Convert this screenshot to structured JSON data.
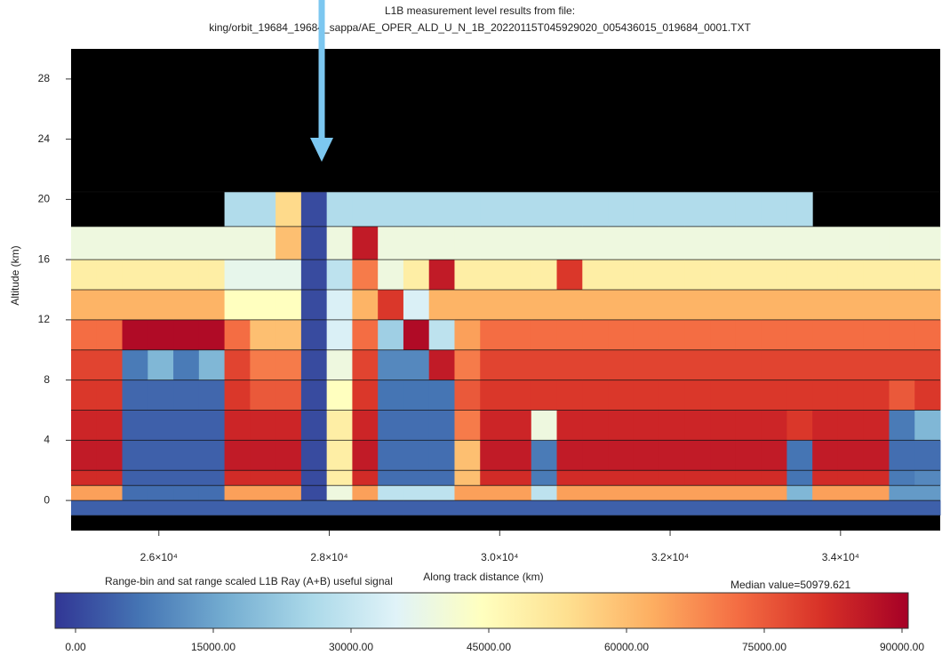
{
  "chart_data": {
    "type": "heatmap",
    "title": "L1B measurement level results from file:",
    "subtitle": "king/orbit_19684_19684_sappa/AE_OPER_ALD_U_N_1B_20220115T045929020_005436015_019684_0001.TXT",
    "x_label": "Along track distance (km)",
    "y_label": "Altitude (km)",
    "xlim": [
      24970,
      35170
    ],
    "ylim": [
      -2,
      30
    ],
    "xticks": [
      {
        "value": 26000,
        "label": "2.6×10⁴"
      },
      {
        "value": 28000,
        "label": "2.8×10⁴"
      },
      {
        "value": 30000,
        "label": "3.0×10⁴"
      },
      {
        "value": 32000,
        "label": "3.2×10⁴"
      },
      {
        "value": 34000,
        "label": "3.4×10⁴"
      }
    ],
    "yticks": [
      0,
      4,
      8,
      12,
      16,
      20,
      24,
      28
    ],
    "x_edges": [
      24970,
      25270,
      25570,
      25870,
      26170,
      26470,
      26770,
      27070,
      27370,
      27670,
      27970,
      28270,
      28570,
      28870,
      29170,
      29470,
      29770,
      30070,
      30370,
      30670,
      30970,
      31270,
      31570,
      31870,
      32170,
      32470,
      32770,
      33070,
      33370,
      33670,
      33970,
      34270,
      34570,
      34870,
      35170
    ],
    "y_edges": [
      -1,
      0,
      1,
      2,
      4,
      6,
      8,
      10,
      12,
      14,
      16,
      18.2,
      20.5
    ],
    "z": [
      [
        6000,
        6000,
        6000,
        6000,
        6000,
        6000,
        6000,
        6000,
        6000,
        6000,
        6000,
        6000,
        6000,
        6000,
        6000,
        6000,
        6000,
        6000,
        6000,
        6000,
        6000,
        6000,
        6000,
        6000,
        6000,
        6000,
        6000,
        6000,
        6000,
        6000,
        6000,
        6000,
        6000,
        6000
      ],
      [
        65000,
        65000,
        8000,
        8000,
        8000,
        8000,
        65000,
        65000,
        65000,
        3000,
        40000,
        65000,
        30000,
        30000,
        30000,
        65000,
        65000,
        65000,
        30000,
        65000,
        65000,
        65000,
        65000,
        65000,
        65000,
        65000,
        65000,
        65000,
        20000,
        65000,
        65000,
        65000,
        15000,
        15000
      ],
      [
        82000,
        82000,
        6000,
        6000,
        6000,
        6000,
        82000,
        82000,
        82000,
        3000,
        50000,
        82000,
        8000,
        8000,
        8000,
        60000,
        82000,
        82000,
        10000,
        82000,
        82000,
        82000,
        82000,
        82000,
        82000,
        82000,
        82000,
        82000,
        9000,
        82000,
        82000,
        82000,
        10000,
        12000
      ],
      [
        85000,
        85000,
        6000,
        6000,
        6000,
        6000,
        85000,
        85000,
        85000,
        3000,
        50000,
        85000,
        8000,
        8000,
        8000,
        60000,
        85000,
        85000,
        10000,
        85000,
        85000,
        85000,
        85000,
        85000,
        85000,
        85000,
        85000,
        85000,
        9000,
        85000,
        85000,
        85000,
        8000,
        8000
      ],
      [
        83000,
        83000,
        6000,
        6000,
        6000,
        6000,
        83000,
        83000,
        83000,
        3000,
        50000,
        83000,
        8000,
        8000,
        8000,
        70000,
        83000,
        83000,
        40000,
        83000,
        83000,
        83000,
        83000,
        83000,
        83000,
        83000,
        83000,
        83000,
        80000,
        83000,
        83000,
        83000,
        10000,
        20000
      ],
      [
        80000,
        80000,
        7000,
        7000,
        7000,
        7000,
        80000,
        75000,
        75000,
        3000,
        45000,
        80000,
        9000,
        9000,
        9000,
        75000,
        80000,
        80000,
        80000,
        80000,
        80000,
        80000,
        80000,
        80000,
        80000,
        80000,
        80000,
        80000,
        80000,
        80000,
        80000,
        80000,
        75000,
        80000
      ],
      [
        78000,
        78000,
        10000,
        20000,
        10000,
        20000,
        78000,
        70000,
        70000,
        3000,
        40000,
        78000,
        12000,
        12000,
        85000,
        70000,
        78000,
        78000,
        78000,
        78000,
        78000,
        78000,
        78000,
        78000,
        78000,
        78000,
        78000,
        78000,
        78000,
        78000,
        78000,
        78000,
        78000,
        78000
      ],
      [
        72000,
        72000,
        88000,
        88000,
        88000,
        88000,
        72000,
        60000,
        60000,
        3000,
        35000,
        72000,
        25000,
        88000,
        30000,
        65000,
        72000,
        72000,
        72000,
        72000,
        72000,
        72000,
        72000,
        72000,
        72000,
        72000,
        72000,
        72000,
        72000,
        72000,
        72000,
        72000,
        72000,
        72000
      ],
      [
        62000,
        62000,
        62000,
        62000,
        62000,
        62000,
        45000,
        45000,
        45000,
        3000,
        35000,
        62000,
        80000,
        35000,
        62000,
        62000,
        62000,
        62000,
        62000,
        62000,
        62000,
        62000,
        62000,
        62000,
        62000,
        62000,
        62000,
        62000,
        62000,
        62000,
        62000,
        62000,
        62000,
        62000
      ],
      [
        50000,
        50000,
        50000,
        50000,
        50000,
        50000,
        38000,
        38000,
        38000,
        3000,
        30000,
        70000,
        40000,
        50000,
        85000,
        50000,
        50000,
        50000,
        50000,
        80000,
        50000,
        50000,
        50000,
        50000,
        50000,
        50000,
        50000,
        50000,
        50000,
        50000,
        50000,
        50000,
        50000,
        50000
      ],
      [
        40000,
        40000,
        40000,
        40000,
        40000,
        40000,
        40000,
        40000,
        60000,
        3000,
        40000,
        85000,
        40000,
        40000,
        40000,
        40000,
        40000,
        40000,
        40000,
        40000,
        40000,
        40000,
        40000,
        40000,
        40000,
        40000,
        40000,
        40000,
        40000,
        40000,
        40000,
        40000,
        40000,
        40000
      ],
      [
        null,
        null,
        null,
        null,
        null,
        null,
        28000,
        28000,
        55000,
        3000,
        28000,
        28000,
        28000,
        28000,
        28000,
        28000,
        28000,
        28000,
        28000,
        28000,
        28000,
        28000,
        28000,
        28000,
        28000,
        28000,
        28000,
        28000,
        28000,
        null,
        null,
        null,
        null,
        null
      ]
    ],
    "colorscale": [
      "#313695",
      "#4575b4",
      "#74add1",
      "#abd9e9",
      "#e0f3f8",
      "#ffffbf",
      "#fee090",
      "#fdae61",
      "#f46d43",
      "#d73027",
      "#a50026"
    ],
    "clim": [
      0,
      90000
    ],
    "colorbar_title": "Range-bin and sat range scaled L1B Ray (A+B) useful signal",
    "colorbar_note": "Median value=50979.621",
    "colorbar_ticks": [
      {
        "value": 0,
        "label": "0.00"
      },
      {
        "value": 15000,
        "label": "15000.00"
      },
      {
        "value": 30000,
        "label": "30000.00"
      },
      {
        "value": 45000,
        "label": "45000.00"
      },
      {
        "value": 60000,
        "label": "60000.00"
      },
      {
        "value": 75000,
        "label": "75000.00"
      },
      {
        "value": 90000,
        "label": "90000.00"
      }
    ]
  }
}
